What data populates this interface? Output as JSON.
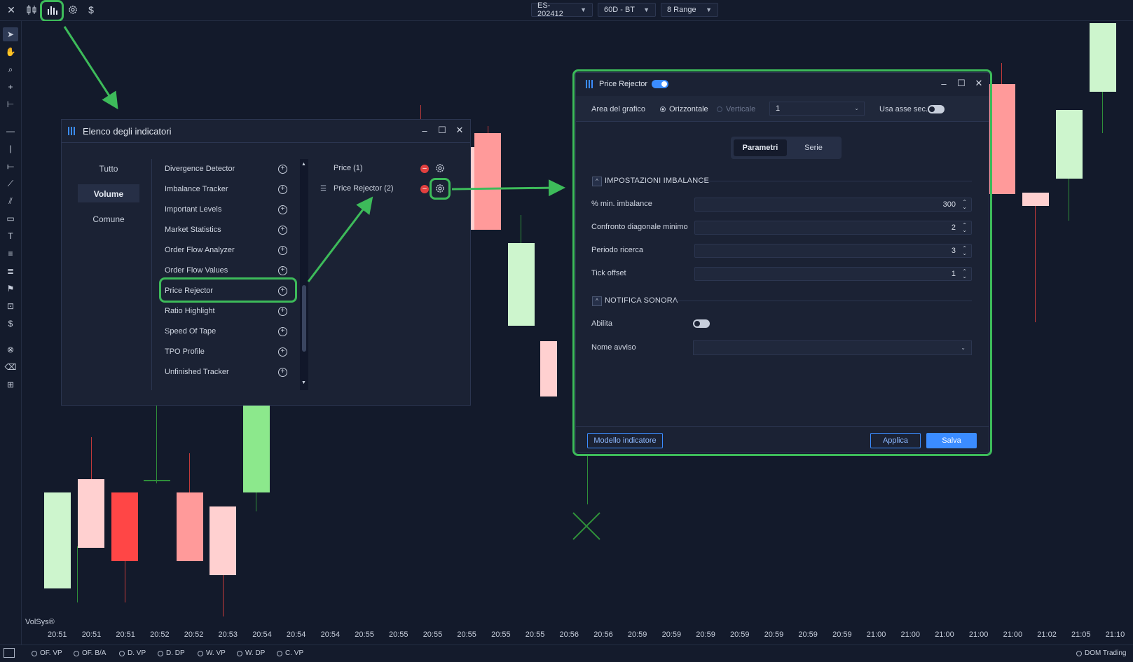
{
  "topbar": {
    "close_icon": "close-icon",
    "symbol": "ES-202412",
    "timeframe": "60D - BT",
    "range": "8 Range",
    "dollar": "$"
  },
  "indicators_window": {
    "title": "Elenco degli indicatori",
    "categories": [
      "Tutto",
      "Volume",
      "Comune"
    ],
    "selected_category": "Volume",
    "available": [
      "Divergence Detector",
      "Imbalance Tracker",
      "Important Levels",
      "Market Statistics",
      "Order Flow Analyzer",
      "Order Flow Values",
      "Price Rejector",
      "Ratio Highlight",
      "Speed Of Tape",
      "TPO Profile",
      "Unfinished Tracker"
    ],
    "added": [
      "Price (1)",
      "Price Rejector (2)"
    ]
  },
  "settings_window": {
    "title": "Price Rejector",
    "area_label": "Area del grafico",
    "orient_h": "Orizzontale",
    "orient_v": "Verticale",
    "area_value": "1",
    "sec_axis_label": "Usa asse sec.",
    "tabs": [
      "Parametri",
      "Serie"
    ],
    "section1": "IMPOSTAZIONI IMBALANCE",
    "params": [
      {
        "label": "% min. imbalance",
        "value": "300"
      },
      {
        "label": "Confronto diagonale minimo",
        "value": "2"
      },
      {
        "label": "Periodo ricerca",
        "value": "3"
      },
      {
        "label": "Tick offset",
        "value": "1"
      }
    ],
    "section2": "NOTIFICA SONORA",
    "enable_label": "Abilita",
    "alert_name_label": "Nome avviso",
    "alert_name_value": "",
    "template_button": "Modello indicatore",
    "apply_button": "Applica",
    "save_button": "Salva"
  },
  "chart": {
    "watermark": "VolSys®",
    "time_labels": [
      "20:51",
      "20:51",
      "20:51",
      "20:52",
      "20:52",
      "20:53",
      "20:54",
      "20:54",
      "20:54",
      "20:55",
      "20:55",
      "20:55",
      "20:55",
      "20:55",
      "20:55",
      "20:56",
      "20:56",
      "20:59",
      "20:59",
      "20:59",
      "20:59",
      "20:59",
      "20:59",
      "20:59",
      "21:00",
      "21:00",
      "21:00",
      "21:00",
      "21:00",
      "21:02",
      "21:05",
      "21:10"
    ]
  },
  "bottombar": {
    "items": [
      "OF. VP",
      "OF. B/A",
      "D. VP",
      "D. DP",
      "W. VP",
      "W. DP",
      "C. VP"
    ],
    "dom_trading": "DOM Trading"
  },
  "colors": {
    "bull_light": "#cdf5cd",
    "bull": "#8ce88c",
    "bear_light": "#ffd0d0",
    "bear": "#ff9a9a",
    "bear_strong": "#ff4646",
    "accent": "#3b8cff",
    "highlight": "#3dbb5a"
  }
}
